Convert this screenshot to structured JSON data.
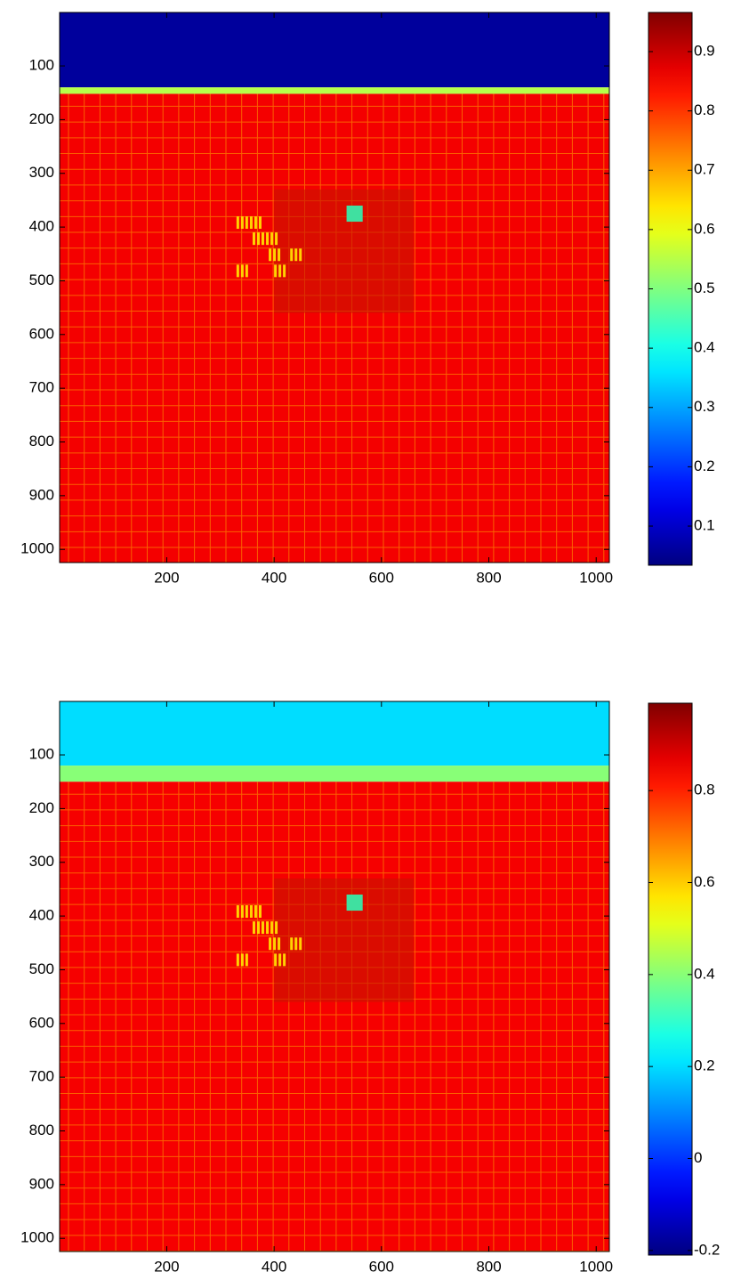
{
  "chart_data": [
    {
      "type": "image",
      "colormap": "jet",
      "y_reversed": true,
      "xlim": [
        0.5,
        1024.5
      ],
      "ylim": [
        0.5,
        1024.5
      ],
      "xticks": [
        200,
        400,
        600,
        800,
        1000
      ],
      "yticks": [
        100,
        200,
        300,
        400,
        500,
        600,
        700,
        800,
        900,
        1000
      ],
      "regions": [
        {
          "rows": [
            0.5,
            140
          ],
          "value": 0.06
        },
        {
          "rows": [
            140,
            152
          ],
          "value": 0.55
        },
        {
          "rows": [
            152,
            1024.5
          ],
          "value": 0.86
        }
      ],
      "colorbar": {
        "clim": [
          0.034,
          0.966
        ],
        "ticks": [
          0.1,
          0.2,
          0.3,
          0.4,
          0.5,
          0.6,
          0.7,
          0.8,
          0.9
        ]
      }
    },
    {
      "type": "image",
      "colormap": "jet",
      "y_reversed": true,
      "xlim": [
        0.5,
        1024.5
      ],
      "ylim": [
        0.5,
        1024.5
      ],
      "xticks": [
        200,
        400,
        600,
        800,
        1000
      ],
      "yticks": [
        100,
        200,
        300,
        400,
        500,
        600,
        700,
        800,
        900,
        1000
      ],
      "regions": [
        {
          "rows": [
            0.5,
            120
          ],
          "value": 0.2
        },
        {
          "rows": [
            120,
            150
          ],
          "value": 0.4
        },
        {
          "rows": [
            150,
            1024.5
          ],
          "value": 0.85
        }
      ],
      "colorbar": {
        "clim": [
          -0.21,
          0.99
        ],
        "ticks": [
          -0.2,
          0,
          0.2,
          0.4,
          0.6,
          0.8
        ]
      }
    }
  ]
}
